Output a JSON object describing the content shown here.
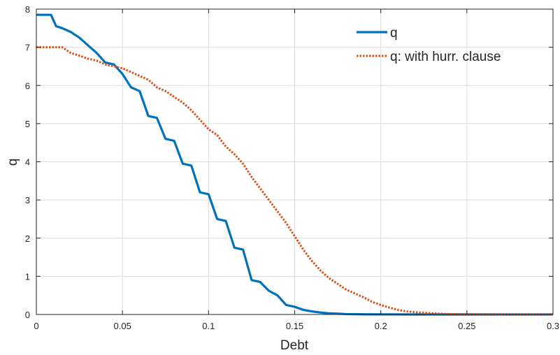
{
  "chart_data": {
    "type": "line",
    "title": "",
    "xlabel": "Debt",
    "ylabel": "q",
    "xlim": [
      0,
      0.3
    ],
    "ylim": [
      0,
      8
    ],
    "xticks": [
      0,
      0.05,
      0.1,
      0.15,
      0.2,
      0.25,
      0.3
    ],
    "xtick_labels": [
      "0",
      "0.05",
      "0.1",
      "0.15",
      "0.2",
      "0.25",
      "0.3"
    ],
    "yticks": [
      0,
      1,
      2,
      3,
      4,
      5,
      6,
      7,
      8
    ],
    "ytick_labels": [
      "0",
      "1",
      "2",
      "3",
      "4",
      "5",
      "6",
      "7",
      "8"
    ],
    "grid": true,
    "legend_position": "top-right",
    "series": [
      {
        "name": "q",
        "color": "#0072BD",
        "style": "solid",
        "x": [
          0,
          0.005,
          0.0085,
          0.0115,
          0.015,
          0.02,
          0.025,
          0.03,
          0.035,
          0.04,
          0.045,
          0.05,
          0.055,
          0.06,
          0.065,
          0.07,
          0.075,
          0.08,
          0.085,
          0.09,
          0.095,
          0.1,
          0.105,
          0.11,
          0.115,
          0.12,
          0.125,
          0.13,
          0.135,
          0.14,
          0.145,
          0.15,
          0.155,
          0.16,
          0.165,
          0.17,
          0.175,
          0.18,
          0.19,
          0.2,
          0.22,
          0.25,
          0.3
        ],
        "y": [
          7.85,
          7.85,
          7.85,
          7.55,
          7.5,
          7.4,
          7.25,
          7.05,
          6.85,
          6.6,
          6.55,
          6.3,
          5.95,
          5.85,
          5.2,
          5.15,
          4.6,
          4.55,
          3.95,
          3.9,
          3.2,
          3.15,
          2.5,
          2.45,
          1.75,
          1.7,
          0.9,
          0.85,
          0.62,
          0.5,
          0.25,
          0.2,
          0.12,
          0.08,
          0.05,
          0.03,
          0.02,
          0.01,
          0.005,
          0.002,
          0.0,
          0.0,
          0.0
        ]
      },
      {
        "name": "q: with hurr. clause",
        "color": "#D95319",
        "style": "dotted",
        "x": [
          0,
          0.005,
          0.01,
          0.015,
          0.02,
          0.025,
          0.03,
          0.035,
          0.04,
          0.045,
          0.05,
          0.055,
          0.06,
          0.065,
          0.07,
          0.075,
          0.08,
          0.085,
          0.09,
          0.095,
          0.1,
          0.105,
          0.11,
          0.115,
          0.12,
          0.125,
          0.13,
          0.135,
          0.14,
          0.145,
          0.15,
          0.155,
          0.16,
          0.165,
          0.17,
          0.175,
          0.18,
          0.185,
          0.19,
          0.195,
          0.2,
          0.205,
          0.21,
          0.215,
          0.22,
          0.23,
          0.24,
          0.25,
          0.26,
          0.28,
          0.3
        ],
        "y": [
          7.0,
          7.0,
          7.0,
          7.0,
          6.85,
          6.78,
          6.7,
          6.65,
          6.55,
          6.5,
          6.45,
          6.35,
          6.25,
          6.15,
          5.95,
          5.85,
          5.7,
          5.55,
          5.35,
          5.1,
          4.85,
          4.7,
          4.4,
          4.2,
          3.95,
          3.6,
          3.3,
          3.0,
          2.7,
          2.4,
          2.05,
          1.7,
          1.4,
          1.15,
          0.95,
          0.8,
          0.65,
          0.55,
          0.45,
          0.33,
          0.25,
          0.18,
          0.12,
          0.08,
          0.06,
          0.03,
          0.01,
          0.005,
          0.002,
          0.0,
          0.0
        ]
      }
    ]
  }
}
